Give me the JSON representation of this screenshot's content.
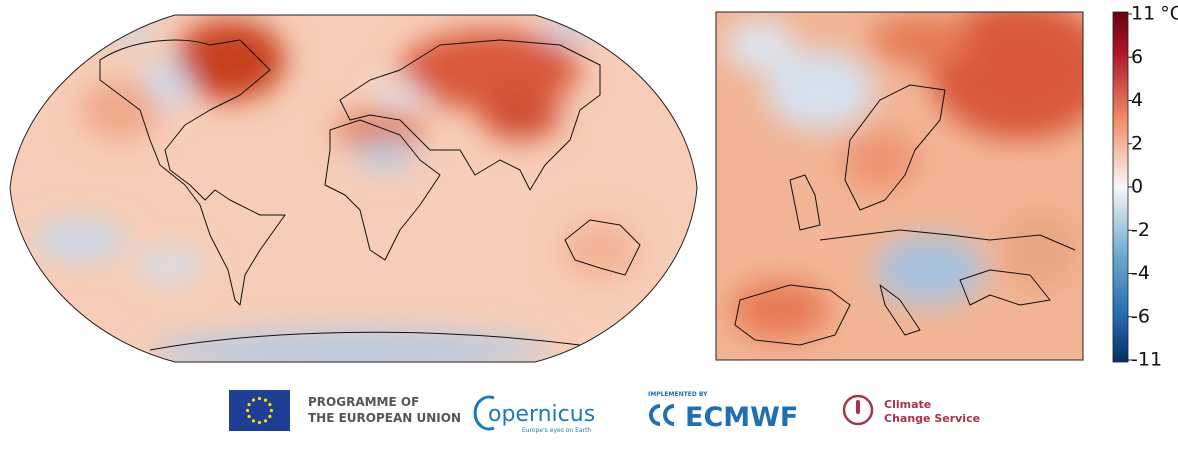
{
  "colorbar": {
    "unit": "°C",
    "ticks": [
      11,
      6,
      4,
      2,
      0,
      -2,
      -4,
      -6,
      -11
    ]
  },
  "logos": {
    "eu": [
      "PROGRAMME OF",
      "THE EUROPEAN UNION"
    ],
    "copernicus": {
      "name": "opernicus",
      "tagline": "Europe's eyes on Earth"
    },
    "ecmwf": {
      "prefix": "IMPLEMENTED BY",
      "name": "ECMWF"
    },
    "c3s": [
      "Climate",
      "Change Service"
    ]
  }
}
